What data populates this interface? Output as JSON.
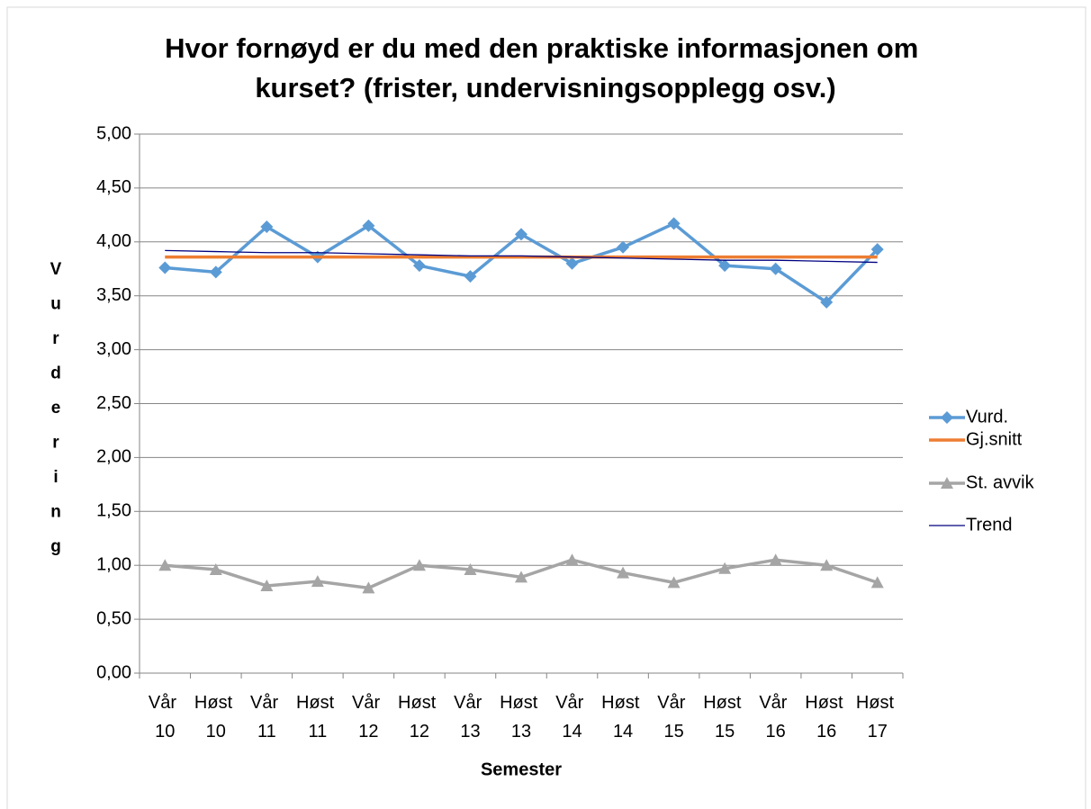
{
  "chart_data": {
    "type": "line",
    "title": "Hvor fornøyd er du med den praktiske informasjonen om kurset? (frister, undervisningsopplegg osv.)",
    "x_label": "Semester",
    "y_label": "Vurdering",
    "categories": [
      "Vår 10",
      "Høst 10",
      "Vår 11",
      "Høst 11",
      "Vår 12",
      "Høst 12",
      "Vår 13",
      "Høst 13",
      "Vår 14",
      "Høst 14",
      "Vår 15",
      "Høst 15",
      "Vår 16",
      "Høst 16",
      "Høst 17"
    ],
    "series": [
      {
        "name": "Vurd.",
        "color": "#5b9bd5",
        "marker": "diamond",
        "values": [
          3.76,
          3.72,
          4.14,
          3.86,
          4.15,
          3.78,
          3.68,
          4.07,
          3.8,
          3.95,
          4.17,
          3.78,
          3.75,
          3.44,
          3.93
        ]
      },
      {
        "name": "Gj.snitt",
        "color": "#ed7d31",
        "values": [
          3.86,
          3.86,
          3.86,
          3.86,
          3.86,
          3.86,
          3.86,
          3.86,
          3.86,
          3.86,
          3.86,
          3.86,
          3.86,
          3.86,
          3.86
        ]
      },
      {
        "name": "St. avvik",
        "color": "#a5a5a5",
        "marker": "triangle",
        "values": [
          1.0,
          0.96,
          0.81,
          0.85,
          0.79,
          1.0,
          0.96,
          0.89,
          1.05,
          0.93,
          0.84,
          0.97,
          1.05,
          1.0,
          0.84
        ]
      },
      {
        "name": "Trend",
        "color": "#000080",
        "thin": true,
        "values": [
          3.92,
          3.91,
          3.9,
          3.9,
          3.89,
          3.88,
          3.87,
          3.87,
          3.86,
          3.85,
          3.84,
          3.83,
          3.83,
          3.82,
          3.81
        ]
      }
    ],
    "ylim": [
      0,
      5
    ],
    "yticks": [
      {
        "value": 0,
        "label": "0,00"
      },
      {
        "value": 0.5,
        "label": "0,50"
      },
      {
        "value": 1,
        "label": "1,00"
      },
      {
        "value": 1.5,
        "label": "1,50"
      },
      {
        "value": 2,
        "label": "2,00"
      },
      {
        "value": 2.5,
        "label": "2,50"
      },
      {
        "value": 3,
        "label": "3,00"
      },
      {
        "value": 3.5,
        "label": "3,50"
      },
      {
        "value": 4,
        "label": "4,00"
      },
      {
        "value": 4.5,
        "label": "4,50"
      },
      {
        "value": 5,
        "label": "5,00"
      }
    ],
    "grid": true,
    "legend": "right"
  }
}
